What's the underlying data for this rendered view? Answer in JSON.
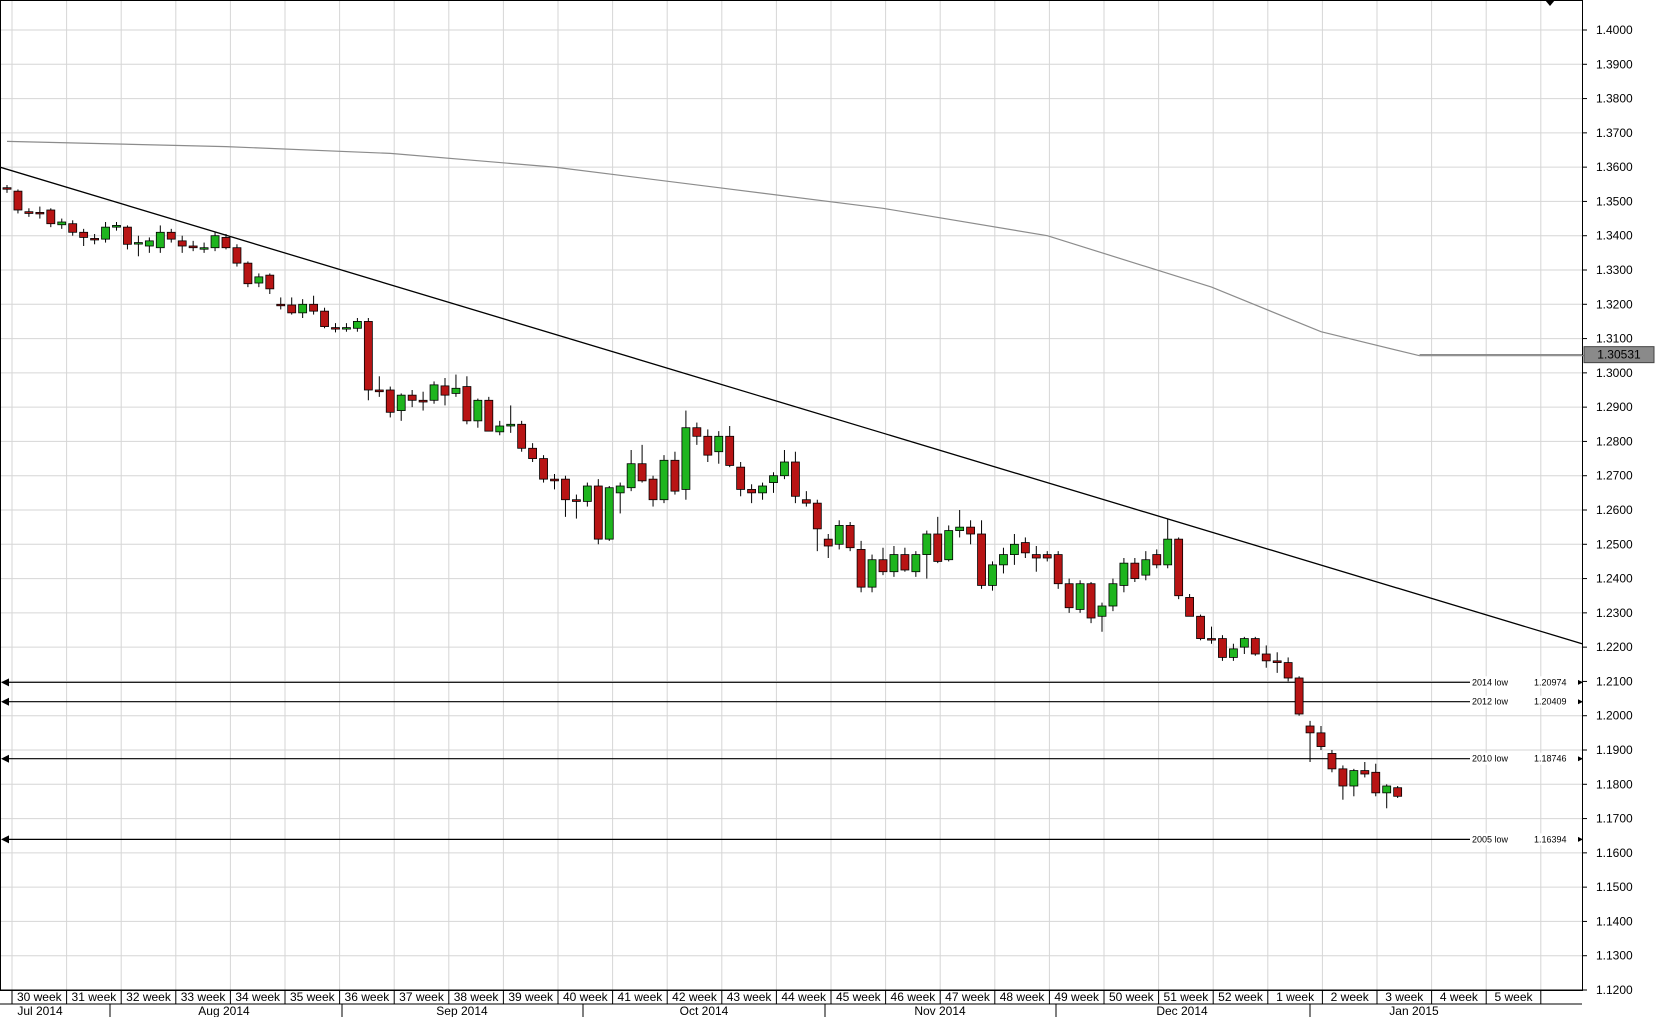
{
  "chart_data": {
    "type": "candlestick",
    "title": "",
    "grid": true,
    "y_axis": {
      "min": 1.12,
      "max": 1.4,
      "ticks": [
        "1.4000",
        "1.3900",
        "1.3800",
        "1.3700",
        "1.3600",
        "1.3500",
        "1.3400",
        "1.3300",
        "1.3200",
        "1.3100",
        "1.3000",
        "1.2900",
        "1.2800",
        "1.2700",
        "1.2600",
        "1.2500",
        "1.2400",
        "1.2300",
        "1.2200",
        "1.2100",
        "1.2000",
        "1.1900",
        "1.1800",
        "1.1700",
        "1.1600",
        "1.1500",
        "1.1400",
        "1.1300",
        "1.1200"
      ]
    },
    "current_price": {
      "value": 1.30531,
      "label": "1.30531"
    },
    "x_axis": {
      "week_labels": [
        "30 week",
        "31 week",
        "32 week",
        "33 week",
        "34 week",
        "35 week",
        "36 week",
        "37 week",
        "38 week",
        "39 week",
        "40 week",
        "41 week",
        "42 week",
        "43 week",
        "44 week",
        "45 week",
        "46 week",
        "47 week",
        "48 week",
        "49 week",
        "50 week",
        "51 week",
        "52 week",
        "1 week",
        "2 week",
        "3 week",
        "4 week",
        "5 week"
      ],
      "month_labels": [
        "Jul 2014",
        "Aug 2014",
        "Sep 2014",
        "Oct 2014",
        "Nov 2014",
        "Dec 2014",
        "Jan 2015"
      ]
    },
    "horizontal_levels": [
      {
        "label": "2014 low",
        "value": 1.20974,
        "value_label": "1.20974"
      },
      {
        "label": "2012 low",
        "value": 1.20409,
        "value_label": "1.20409"
      },
      {
        "label": "2010 low",
        "value": 1.18746,
        "value_label": "1.18746"
      },
      {
        "label": "2005 low",
        "value": 1.16394,
        "value_label": "1.16394"
      }
    ],
    "trendline": {
      "from": {
        "bar": 0,
        "value": 1.36
      },
      "to": {
        "bar": 144,
        "value": 1.221
      }
    },
    "moving_average": [
      [
        0,
        1.3675
      ],
      [
        20,
        1.366
      ],
      [
        35,
        1.364
      ],
      [
        50,
        1.36
      ],
      [
        65,
        1.354
      ],
      [
        80,
        1.348
      ],
      [
        95,
        1.34
      ],
      [
        110,
        1.325
      ],
      [
        120,
        1.312
      ],
      [
        129,
        1.305
      ],
      [
        144,
        1.305
      ]
    ],
    "candles": [
      {
        "o": 1.354,
        "h": 1.3548,
        "l": 1.3525,
        "c": 1.3538
      },
      {
        "o": 1.353,
        "h": 1.3535,
        "l": 1.3465,
        "c": 1.3475
      },
      {
        "o": 1.347,
        "h": 1.348,
        "l": 1.3455,
        "c": 1.3465
      },
      {
        "o": 1.3468,
        "h": 1.3485,
        "l": 1.345,
        "c": 1.3465
      },
      {
        "o": 1.3475,
        "h": 1.348,
        "l": 1.3425,
        "c": 1.3435
      },
      {
        "o": 1.3432,
        "h": 1.345,
        "l": 1.342,
        "c": 1.344
      },
      {
        "o": 1.3435,
        "h": 1.3445,
        "l": 1.34,
        "c": 1.341
      },
      {
        "o": 1.341,
        "h": 1.342,
        "l": 1.337,
        "c": 1.3395
      },
      {
        "o": 1.3392,
        "h": 1.3405,
        "l": 1.3375,
        "c": 1.339
      },
      {
        "o": 1.339,
        "h": 1.344,
        "l": 1.338,
        "c": 1.3425
      },
      {
        "o": 1.3425,
        "h": 1.344,
        "l": 1.3415,
        "c": 1.343
      },
      {
        "o": 1.3425,
        "h": 1.343,
        "l": 1.336,
        "c": 1.3375
      },
      {
        "o": 1.338,
        "h": 1.34,
        "l": 1.334,
        "c": 1.338
      },
      {
        "o": 1.337,
        "h": 1.3395,
        "l": 1.335,
        "c": 1.3385
      },
      {
        "o": 1.3365,
        "h": 1.343,
        "l": 1.335,
        "c": 1.341
      },
      {
        "o": 1.341,
        "h": 1.342,
        "l": 1.338,
        "c": 1.339
      },
      {
        "o": 1.3385,
        "h": 1.34,
        "l": 1.335,
        "c": 1.337
      },
      {
        "o": 1.337,
        "h": 1.3385,
        "l": 1.3355,
        "c": 1.3365
      },
      {
        "o": 1.3362,
        "h": 1.338,
        "l": 1.335,
        "c": 1.3365
      },
      {
        "o": 1.3365,
        "h": 1.341,
        "l": 1.3355,
        "c": 1.34
      },
      {
        "o": 1.3395,
        "h": 1.3405,
        "l": 1.336,
        "c": 1.3365
      },
      {
        "o": 1.3365,
        "h": 1.3375,
        "l": 1.331,
        "c": 1.332
      },
      {
        "o": 1.332,
        "h": 1.3325,
        "l": 1.325,
        "c": 1.326
      },
      {
        "o": 1.3262,
        "h": 1.329,
        "l": 1.325,
        "c": 1.328
      },
      {
        "o": 1.3285,
        "h": 1.329,
        "l": 1.323,
        "c": 1.3245
      },
      {
        "o": 1.32,
        "h": 1.322,
        "l": 1.3185,
        "c": 1.3198
      },
      {
        "o": 1.3198,
        "h": 1.322,
        "l": 1.317,
        "c": 1.3175
      },
      {
        "o": 1.3175,
        "h": 1.3215,
        "l": 1.316,
        "c": 1.32
      },
      {
        "o": 1.32,
        "h": 1.3225,
        "l": 1.317,
        "c": 1.318
      },
      {
        "o": 1.318,
        "h": 1.319,
        "l": 1.313,
        "c": 1.3135
      },
      {
        "o": 1.3132,
        "h": 1.3145,
        "l": 1.3118,
        "c": 1.313
      },
      {
        "o": 1.313,
        "h": 1.3145,
        "l": 1.312,
        "c": 1.3132
      },
      {
        "o": 1.313,
        "h": 1.316,
        "l": 1.312,
        "c": 1.315
      },
      {
        "o": 1.315,
        "h": 1.316,
        "l": 1.292,
        "c": 1.295
      },
      {
        "o": 1.295,
        "h": 1.299,
        "l": 1.293,
        "c": 1.2945
      },
      {
        "o": 1.295,
        "h": 1.296,
        "l": 1.287,
        "c": 1.2885
      },
      {
        "o": 1.289,
        "h": 1.294,
        "l": 1.286,
        "c": 1.2935
      },
      {
        "o": 1.2935,
        "h": 1.295,
        "l": 1.29,
        "c": 1.292
      },
      {
        "o": 1.292,
        "h": 1.2945,
        "l": 1.289,
        "c": 1.2915
      },
      {
        "o": 1.292,
        "h": 1.2975,
        "l": 1.291,
        "c": 1.2965
      },
      {
        "o": 1.2962,
        "h": 1.2985,
        "l": 1.2905,
        "c": 1.2935
      },
      {
        "o": 1.294,
        "h": 1.2995,
        "l": 1.293,
        "c": 1.2955
      },
      {
        "o": 1.296,
        "h": 1.299,
        "l": 1.285,
        "c": 1.286
      },
      {
        "o": 1.286,
        "h": 1.2925,
        "l": 1.284,
        "c": 1.292
      },
      {
        "o": 1.292,
        "h": 1.293,
        "l": 1.283,
        "c": 1.283
      },
      {
        "o": 1.2828,
        "h": 1.286,
        "l": 1.2818,
        "c": 1.2845
      },
      {
        "o": 1.2845,
        "h": 1.2905,
        "l": 1.2825,
        "c": 1.285
      },
      {
        "o": 1.285,
        "h": 1.286,
        "l": 1.277,
        "c": 1.278
      },
      {
        "o": 1.278,
        "h": 1.2795,
        "l": 1.274,
        "c": 1.275
      },
      {
        "o": 1.275,
        "h": 1.276,
        "l": 1.268,
        "c": 1.269
      },
      {
        "o": 1.269,
        "h": 1.2705,
        "l": 1.266,
        "c": 1.2685
      },
      {
        "o": 1.269,
        "h": 1.27,
        "l": 1.258,
        "c": 1.263
      },
      {
        "o": 1.263,
        "h": 1.2645,
        "l": 1.2575,
        "c": 1.2625
      },
      {
        "o": 1.2625,
        "h": 1.268,
        "l": 1.261,
        "c": 1.267
      },
      {
        "o": 1.267,
        "h": 1.269,
        "l": 1.25,
        "c": 1.2515
      },
      {
        "o": 1.2515,
        "h": 1.267,
        "l": 1.251,
        "c": 1.2665
      },
      {
        "o": 1.265,
        "h": 1.268,
        "l": 1.259,
        "c": 1.267
      },
      {
        "o": 1.2665,
        "h": 1.2775,
        "l": 1.2655,
        "c": 1.2735
      },
      {
        "o": 1.2735,
        "h": 1.279,
        "l": 1.268,
        "c": 1.2685
      },
      {
        "o": 1.269,
        "h": 1.27,
        "l": 1.261,
        "c": 1.263
      },
      {
        "o": 1.263,
        "h": 1.276,
        "l": 1.262,
        "c": 1.2745
      },
      {
        "o": 1.2745,
        "h": 1.277,
        "l": 1.2645,
        "c": 1.2655
      },
      {
        "o": 1.266,
        "h": 1.289,
        "l": 1.263,
        "c": 1.284
      },
      {
        "o": 1.284,
        "h": 1.2855,
        "l": 1.279,
        "c": 1.2815
      },
      {
        "o": 1.2815,
        "h": 1.2835,
        "l": 1.274,
        "c": 1.276
      },
      {
        "o": 1.277,
        "h": 1.283,
        "l": 1.2735,
        "c": 1.2815
      },
      {
        "o": 1.2815,
        "h": 1.2845,
        "l": 1.2725,
        "c": 1.273
      },
      {
        "o": 1.2725,
        "h": 1.274,
        "l": 1.264,
        "c": 1.266
      },
      {
        "o": 1.266,
        "h": 1.2675,
        "l": 1.262,
        "c": 1.265
      },
      {
        "o": 1.265,
        "h": 1.268,
        "l": 1.263,
        "c": 1.267
      },
      {
        "o": 1.268,
        "h": 1.271,
        "l": 1.265,
        "c": 1.27
      },
      {
        "o": 1.27,
        "h": 1.2775,
        "l": 1.269,
        "c": 1.274
      },
      {
        "o": 1.274,
        "h": 1.277,
        "l": 1.262,
        "c": 1.264
      },
      {
        "o": 1.263,
        "h": 1.2655,
        "l": 1.261,
        "c": 1.262
      },
      {
        "o": 1.262,
        "h": 1.263,
        "l": 1.248,
        "c": 1.2545
      },
      {
        "o": 1.2515,
        "h": 1.253,
        "l": 1.246,
        "c": 1.2495
      },
      {
        "o": 1.25,
        "h": 1.257,
        "l": 1.2485,
        "c": 1.2555
      },
      {
        "o": 1.2555,
        "h": 1.2565,
        "l": 1.248,
        "c": 1.249
      },
      {
        "o": 1.2485,
        "h": 1.251,
        "l": 1.236,
        "c": 1.2375
      },
      {
        "o": 1.2375,
        "h": 1.247,
        "l": 1.236,
        "c": 1.2455
      },
      {
        "o": 1.2455,
        "h": 1.249,
        "l": 1.241,
        "c": 1.242
      },
      {
        "o": 1.242,
        "h": 1.2495,
        "l": 1.2405,
        "c": 1.247
      },
      {
        "o": 1.247,
        "h": 1.249,
        "l": 1.242,
        "c": 1.2425
      },
      {
        "o": 1.242,
        "h": 1.248,
        "l": 1.2405,
        "c": 1.247
      },
      {
        "o": 1.247,
        "h": 1.254,
        "l": 1.24,
        "c": 1.253
      },
      {
        "o": 1.253,
        "h": 1.258,
        "l": 1.2445,
        "c": 1.245
      },
      {
        "o": 1.2455,
        "h": 1.2555,
        "l": 1.245,
        "c": 1.254
      },
      {
        "o": 1.254,
        "h": 1.26,
        "l": 1.252,
        "c": 1.255
      },
      {
        "o": 1.255,
        "h": 1.257,
        "l": 1.25,
        "c": 1.253
      },
      {
        "o": 1.253,
        "h": 1.257,
        "l": 1.237,
        "c": 1.238
      },
      {
        "o": 1.238,
        "h": 1.245,
        "l": 1.2365,
        "c": 1.244
      },
      {
        "o": 1.244,
        "h": 1.249,
        "l": 1.2415,
        "c": 1.247
      },
      {
        "o": 1.247,
        "h": 1.253,
        "l": 1.244,
        "c": 1.25
      },
      {
        "o": 1.2505,
        "h": 1.252,
        "l": 1.246,
        "c": 1.2475
      },
      {
        "o": 1.247,
        "h": 1.2495,
        "l": 1.242,
        "c": 1.246
      },
      {
        "o": 1.247,
        "h": 1.248,
        "l": 1.245,
        "c": 1.246
      },
      {
        "o": 1.247,
        "h": 1.248,
        "l": 1.237,
        "c": 1.2385
      },
      {
        "o": 1.2385,
        "h": 1.24,
        "l": 1.23,
        "c": 1.2315
      },
      {
        "o": 1.231,
        "h": 1.2395,
        "l": 1.23,
        "c": 1.2385
      },
      {
        "o": 1.2385,
        "h": 1.239,
        "l": 1.227,
        "c": 1.2285
      },
      {
        "o": 1.229,
        "h": 1.233,
        "l": 1.2245,
        "c": 1.232
      },
      {
        "o": 1.232,
        "h": 1.24,
        "l": 1.2305,
        "c": 1.2385
      },
      {
        "o": 1.238,
        "h": 1.246,
        "l": 1.236,
        "c": 1.2445
      },
      {
        "o": 1.2445,
        "h": 1.246,
        "l": 1.239,
        "c": 1.24
      },
      {
        "o": 1.241,
        "h": 1.248,
        "l": 1.2395,
        "c": 1.2455
      },
      {
        "o": 1.247,
        "h": 1.2485,
        "l": 1.243,
        "c": 1.244
      },
      {
        "o": 1.244,
        "h": 1.2575,
        "l": 1.243,
        "c": 1.2515
      },
      {
        "o": 1.2515,
        "h": 1.252,
        "l": 1.234,
        "c": 1.235
      },
      {
        "o": 1.2345,
        "h": 1.2355,
        "l": 1.229,
        "c": 1.229
      },
      {
        "o": 1.229,
        "h": 1.2295,
        "l": 1.222,
        "c": 1.2225
      },
      {
        "o": 1.2225,
        "h": 1.226,
        "l": 1.221,
        "c": 1.2222
      },
      {
        "o": 1.2225,
        "h": 1.2235,
        "l": 1.216,
        "c": 1.217
      },
      {
        "o": 1.217,
        "h": 1.221,
        "l": 1.216,
        "c": 1.2195
      },
      {
        "o": 1.22,
        "h": 1.223,
        "l": 1.218,
        "c": 1.2225
      },
      {
        "o": 1.2225,
        "h": 1.223,
        "l": 1.2175,
        "c": 1.218
      },
      {
        "o": 1.218,
        "h": 1.2205,
        "l": 1.214,
        "c": 1.216
      },
      {
        "o": 1.216,
        "h": 1.2185,
        "l": 1.2125,
        "c": 1.2155
      },
      {
        "o": 1.2155,
        "h": 1.217,
        "l": 1.21,
        "c": 1.211
      },
      {
        "o": 1.211,
        "h": 1.2115,
        "l": 1.2,
        "c": 1.2005
      },
      {
        "o": 1.197,
        "h": 1.1985,
        "l": 1.1865,
        "c": 1.195
      },
      {
        "o": 1.195,
        "h": 1.197,
        "l": 1.19,
        "c": 1.191
      },
      {
        "o": 1.189,
        "h": 1.19,
        "l": 1.1835,
        "c": 1.1845
      },
      {
        "o": 1.1845,
        "h": 1.1855,
        "l": 1.1755,
        "c": 1.1795
      },
      {
        "o": 1.1795,
        "h": 1.1845,
        "l": 1.1765,
        "c": 1.184
      },
      {
        "o": 1.184,
        "h": 1.1865,
        "l": 1.182,
        "c": 1.183
      },
      {
        "o": 1.1835,
        "h": 1.186,
        "l": 1.1765,
        "c": 1.1775
      },
      {
        "o": 1.1775,
        "h": 1.18,
        "l": 1.173,
        "c": 1.1795
      },
      {
        "o": 1.179,
        "h": 1.1795,
        "l": 1.176,
        "c": 1.1765
      }
    ]
  },
  "colors": {
    "bull": "#1eb51e",
    "bear": "#b81414",
    "grid": "#d6d6d6",
    "price_box": "#8a8a8a"
  }
}
